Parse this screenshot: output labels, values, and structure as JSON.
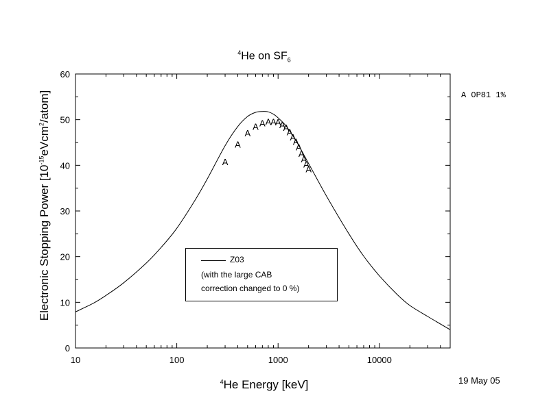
{
  "title": {
    "base": "He on SF",
    "superscript": "4",
    "subscript": "6"
  },
  "xaxis_label": {
    "superscript": "4",
    "text": "He Energy [keV]"
  },
  "yaxis_label": {
    "prefix": "Electronic Stopping Power [10",
    "exp": "-15",
    "mid": "eVcm",
    "exp2": "2",
    "suffix": "/atom]"
  },
  "date": "19 May 05",
  "side_legend": "A OP81 1%",
  "legend_box": {
    "line_label": "Z03",
    "note_line1": "(with the large CAB",
    "note_line2": "correction changed to 0 %)"
  },
  "chart_data": {
    "type": "line",
    "xscale": "log",
    "xlim": [
      10,
      50000
    ],
    "ylim": [
      0,
      60
    ],
    "xticks": [
      "10",
      "100",
      "1000",
      "10000"
    ],
    "yticks": [
      "0",
      "10",
      "20",
      "30",
      "40",
      "50",
      "60"
    ],
    "grid": false,
    "series": [
      {
        "name": "Z03",
        "style": "line",
        "x": [
          10,
          15,
          20,
          30,
          50,
          70,
          100,
          150,
          200,
          300,
          400,
          500,
          600,
          700,
          800,
          900,
          1000,
          1200,
          1500,
          2000,
          3000,
          5000,
          7000,
          10000,
          15000,
          20000,
          30000,
          50000
        ],
        "y": [
          7.9,
          9.8,
          11.5,
          14.3,
          18.6,
          22.0,
          26.2,
          32.2,
          37.0,
          44.3,
          48.5,
          50.7,
          51.6,
          51.8,
          51.7,
          51.2,
          50.4,
          48.6,
          45.4,
          40.4,
          33.3,
          25.0,
          20.1,
          15.8,
          11.7,
          9.3,
          6.9,
          4.0
        ]
      },
      {
        "name": "OP81 1%",
        "style": "marker",
        "marker": "A",
        "x": [
          300,
          400,
          500,
          600,
          700,
          800,
          900,
          1000,
          1100,
          1200,
          1300,
          1400,
          1500,
          1600,
          1700,
          1800,
          1900,
          2000
        ],
        "y": [
          40.8,
          44.6,
          47.1,
          48.5,
          49.3,
          49.6,
          49.6,
          49.5,
          48.9,
          48.3,
          47.3,
          46.2,
          45.2,
          44.0,
          42.6,
          41.4,
          40.3,
          39.2
        ]
      }
    ]
  }
}
